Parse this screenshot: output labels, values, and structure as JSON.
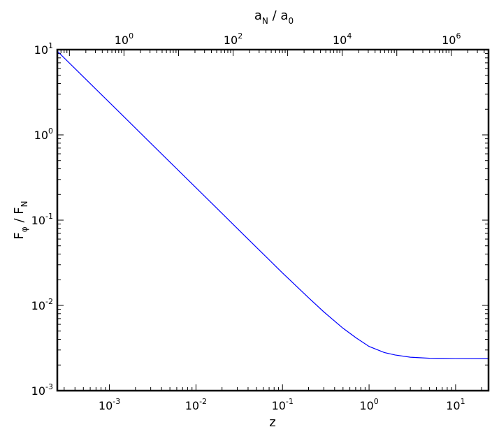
{
  "chart_data": {
    "type": "line",
    "xlabel": "z",
    "ylabel_base": "F",
    "ylabel_sub1": "φ",
    "ylabel_sep": " / ",
    "ylabel_sub2": "N",
    "x2label_base": "a",
    "x2label_sub1": "N",
    "x2label_sep": " / ",
    "x2label_sub2": "0",
    "x_scale": "log",
    "y_scale": "log",
    "x2_scale": "log",
    "xlim": [
      0.00025,
      24
    ],
    "ylim": [
      0.001,
      10
    ],
    "x2lim": [
      0.06,
      4800000
    ],
    "x_ticks": [
      {
        "base": "10",
        "exp": "-3",
        "value": 0.001
      },
      {
        "base": "10",
        "exp": "-2",
        "value": 0.01
      },
      {
        "base": "10",
        "exp": "-1",
        "value": 0.1
      },
      {
        "base": "10",
        "exp": "0",
        "value": 1
      },
      {
        "base": "10",
        "exp": "1",
        "value": 10
      }
    ],
    "y_ticks": [
      {
        "base": "10",
        "exp": "-3",
        "value": 0.001
      },
      {
        "base": "10",
        "exp": "-2",
        "value": 0.01
      },
      {
        "base": "10",
        "exp": "-1",
        "value": 0.1
      },
      {
        "base": "10",
        "exp": "0",
        "value": 1
      },
      {
        "base": "10",
        "exp": "1",
        "value": 10
      }
    ],
    "x2_ticks": [
      {
        "base": "10",
        "exp": "0",
        "value": 1
      },
      {
        "base": "10",
        "exp": "2",
        "value": 100
      },
      {
        "base": "10",
        "exp": "4",
        "value": 10000
      },
      {
        "base": "10",
        "exp": "6",
        "value": 1000000
      }
    ],
    "series": [
      {
        "color": "#0000ff",
        "x": [
          0.00025,
          0.0005,
          0.001,
          0.002,
          0.005,
          0.01,
          0.02,
          0.05,
          0.1,
          0.2,
          0.3,
          0.5,
          0.7,
          1.0,
          1.5,
          2.0,
          3.0,
          5.0,
          10.0,
          24.0
        ],
        "y": [
          9.6,
          4.8,
          2.4,
          1.2,
          0.48,
          0.24,
          0.12,
          0.048,
          0.024,
          0.0123,
          0.0084,
          0.0054,
          0.0042,
          0.0033,
          0.0028,
          0.00262,
          0.00247,
          0.0024,
          0.00238,
          0.00237
        ]
      }
    ],
    "grid": false,
    "legend": "none"
  }
}
